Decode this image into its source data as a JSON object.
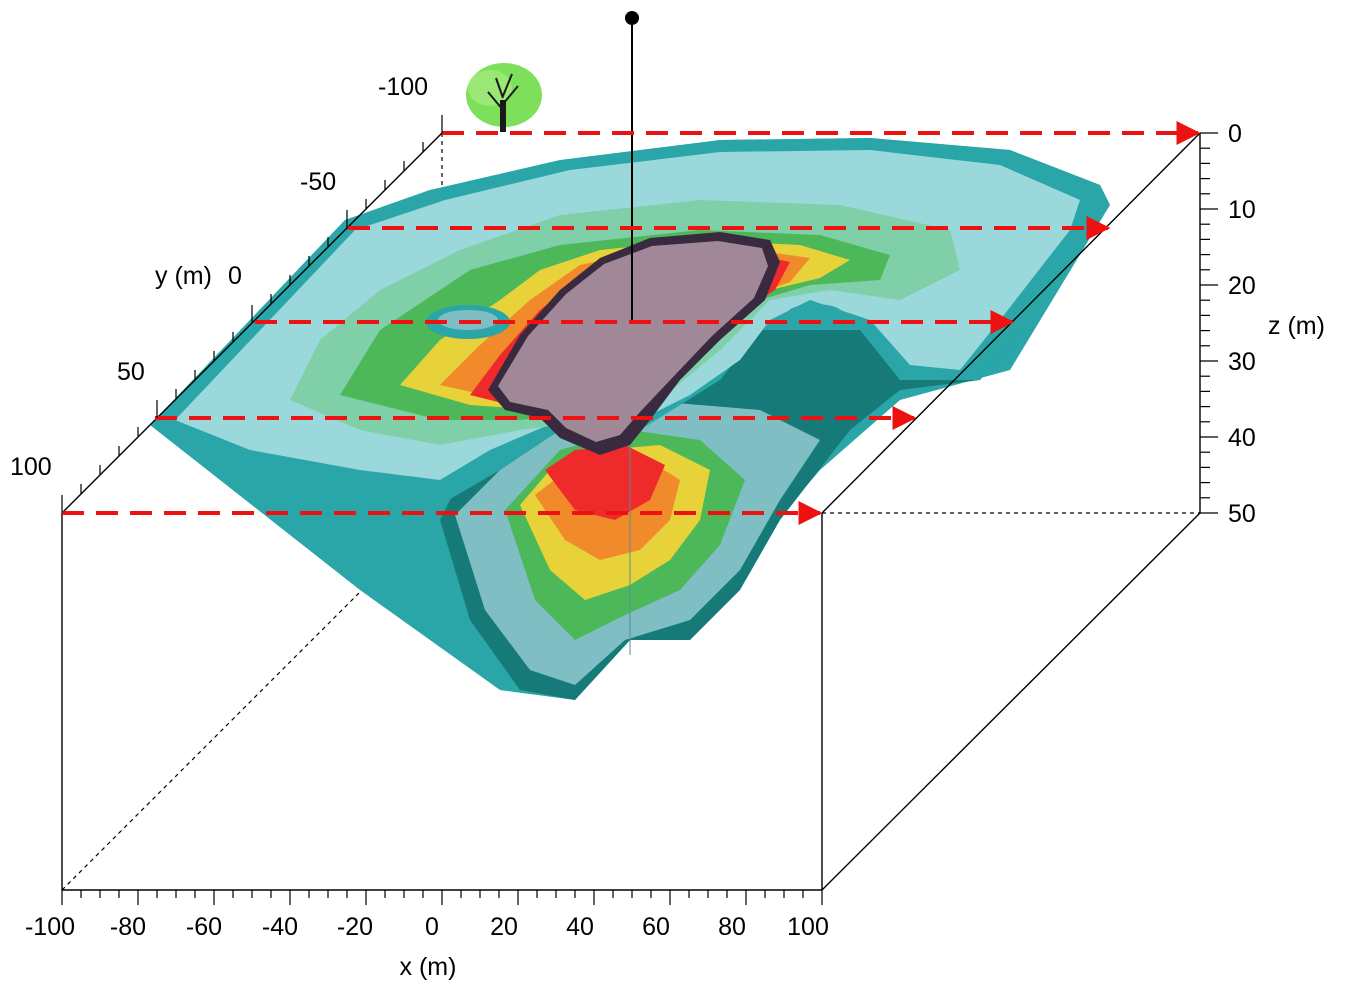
{
  "x_axis": {
    "title": "x (m)",
    "ticks": [
      "-100",
      "-80",
      "-60",
      "-40",
      "-20",
      "0",
      "20",
      "40",
      "60",
      "80",
      "100"
    ]
  },
  "y_axis": {
    "title": "y (m)",
    "ticks": [
      "-100",
      "-50",
      "0",
      "50",
      "100"
    ]
  },
  "z_axis": {
    "title": "z (m)",
    "ticks": [
      "0",
      "10",
      "20",
      "30",
      "40",
      "50"
    ]
  },
  "colors": {
    "arrow": "#ee1111",
    "frame": "#000000",
    "plume_core": "#a08898",
    "plume_outline": "#3a2a40",
    "zone_red": "#ee2a2a",
    "zone_orange": "#f08a2a",
    "zone_yellow": "#e8d23a",
    "zone_green": "#4cb85a",
    "zone_lightgreen": "#7fd0a8",
    "zone_cyan": "#9ad8dc",
    "zone_teal": "#2aa6a8",
    "zone_darkteal": "#157a78",
    "tree_foliage": "#7ee05a"
  },
  "icons": [
    "tree-icon",
    "well-marker-icon",
    "arrow-right-icon"
  ]
}
